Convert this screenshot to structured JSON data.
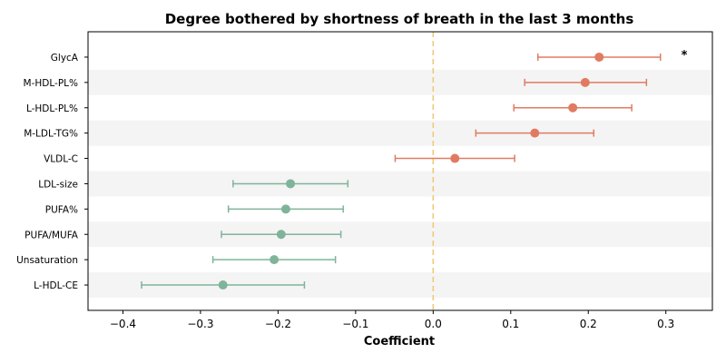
{
  "chart_data": {
    "type": "scatter",
    "title": "Degree bothered by shortness of breath in the last 3 months",
    "xlabel": "Coefficient",
    "xlim": [
      -0.445,
      0.36
    ],
    "xticks": [
      -0.4,
      -0.3,
      -0.2,
      -0.1,
      0.0,
      0.1,
      0.2,
      0.3
    ],
    "xtick_labels": [
      "−0.4",
      "−0.3",
      "−0.2",
      "−0.1",
      "0.0",
      "0.1",
      "0.2",
      "0.3"
    ],
    "reference_line": 0.0,
    "grid": false,
    "alternating_row_shading": true,
    "colors": {
      "positive": "#e07b62",
      "negative": "#7fb49a",
      "reference_line": "#f0c97a",
      "row_shade": "#f4f4f4"
    },
    "points": [
      {
        "label": "GlycA",
        "coef": 0.214,
        "low": 0.135,
        "high": 0.293,
        "annotation": "*"
      },
      {
        "label": "M-HDL-PL%",
        "coef": 0.196,
        "low": 0.118,
        "high": 0.275,
        "annotation": ""
      },
      {
        "label": "L-HDL-PL%",
        "coef": 0.18,
        "low": 0.104,
        "high": 0.256,
        "annotation": ""
      },
      {
        "label": "M-LDL-TG%",
        "coef": 0.131,
        "low": 0.055,
        "high": 0.207,
        "annotation": ""
      },
      {
        "label": "VLDL-C",
        "coef": 0.028,
        "low": -0.049,
        "high": 0.105,
        "annotation": ""
      },
      {
        "label": "LDL-size",
        "coef": -0.184,
        "low": -0.258,
        "high": -0.11,
        "annotation": ""
      },
      {
        "label": "PUFA%",
        "coef": -0.19,
        "low": -0.264,
        "high": -0.116,
        "annotation": ""
      },
      {
        "label": "PUFA/MUFA",
        "coef": -0.196,
        "low": -0.273,
        "high": -0.119,
        "annotation": ""
      },
      {
        "label": "Unsaturation",
        "coef": -0.205,
        "low": -0.284,
        "high": -0.126,
        "annotation": ""
      },
      {
        "label": "L-HDL-CE",
        "coef": -0.271,
        "low": -0.376,
        "high": -0.166,
        "annotation": ""
      }
    ]
  }
}
